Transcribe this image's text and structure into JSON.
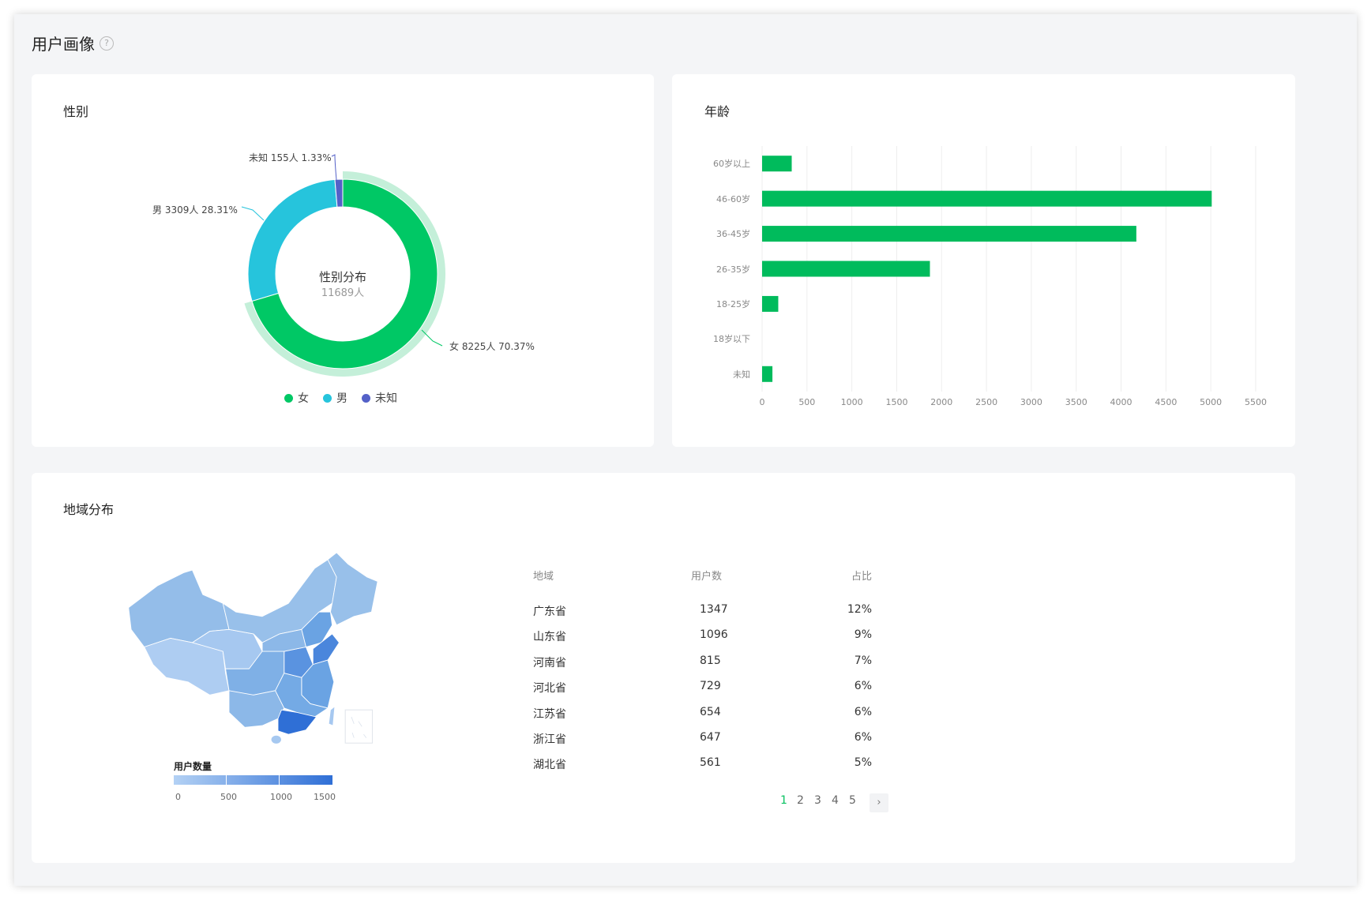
{
  "page": {
    "title": "用户画像",
    "help_icon": "question-circle-icon"
  },
  "gender_card": {
    "title": "性别",
    "center_title": "性别分布",
    "center_total": "11689人"
  },
  "age_card": {
    "title": "年龄"
  },
  "region_card": {
    "title": "地域分布",
    "visual_map": {
      "title": "用户数量",
      "ticks": [
        "0",
        "500",
        "1000",
        "1500"
      ],
      "color_low": "#b3d1f4",
      "color_high": "#2f6fd6"
    },
    "table": {
      "headers": [
        "地域",
        "用户数",
        "占比"
      ],
      "rows": [
        {
          "region": "广东省",
          "users": "1347",
          "share": "12%"
        },
        {
          "region": "山东省",
          "users": "1096",
          "share": "9%"
        },
        {
          "region": "河南省",
          "users": "815",
          "share": "7%"
        },
        {
          "region": "河北省",
          "users": "729",
          "share": "6%"
        },
        {
          "region": "江苏省",
          "users": "654",
          "share": "6%"
        },
        {
          "region": "浙江省",
          "users": "647",
          "share": "6%"
        },
        {
          "region": "湖北省",
          "users": "561",
          "share": "5%"
        }
      ]
    },
    "pagination": {
      "pages": [
        "1",
        "2",
        "3",
        "4",
        "5"
      ],
      "current": "1",
      "next": "›"
    }
  },
  "chart_data": [
    {
      "type": "pie",
      "variant": "donut",
      "labels": [
        "女",
        "男",
        "未知"
      ],
      "values": [
        8225,
        3309,
        155
      ],
      "percents": [
        "70.37%",
        "28.31%",
        "1.33%"
      ],
      "slice_labels": [
        "女 8225人 70.37%",
        "男 3309人 28.31%",
        "未知 155人 1.33%"
      ],
      "colors": [
        "#00c865",
        "#26c4dc",
        "#5461c8"
      ],
      "highlighted": "女",
      "legend": [
        "女",
        "男",
        "未知"
      ],
      "legend_position": "bottom"
    },
    {
      "type": "bar",
      "orientation": "horizontal",
      "categories": [
        "60岁以上",
        "46-60岁",
        "36-45岁",
        "26-35岁",
        "18-25岁",
        "18岁以下",
        "未知"
      ],
      "values": [
        330,
        5010,
        4170,
        1870,
        180,
        0,
        115
      ],
      "xlim": [
        0,
        5500
      ],
      "xticks": [
        "0",
        "500",
        "1000",
        "1500",
        "2000",
        "2500",
        "3000",
        "3500",
        "4000",
        "4500",
        "5000",
        "5500"
      ],
      "grid": true,
      "color": "#00bb5c"
    }
  ]
}
